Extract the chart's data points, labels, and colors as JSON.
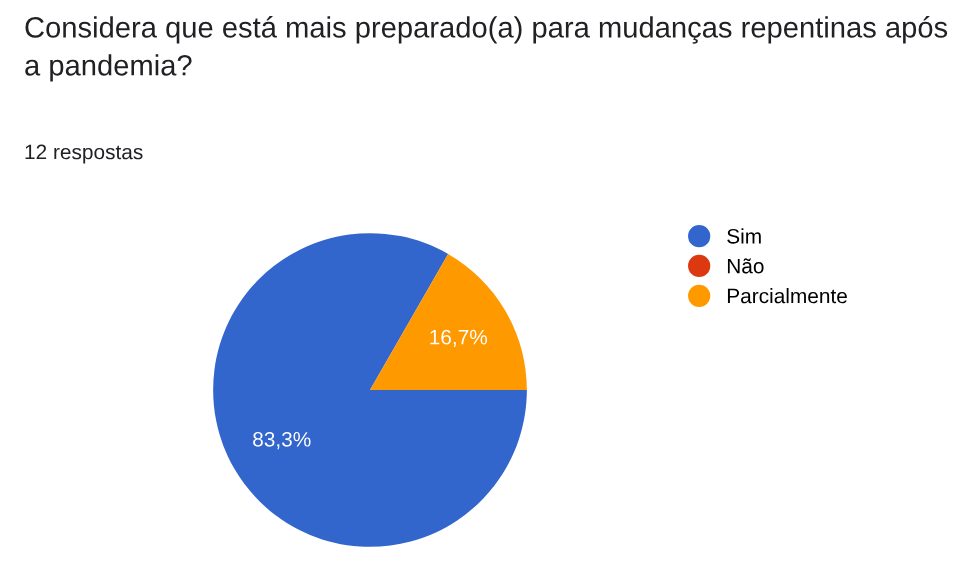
{
  "chart_data": {
    "type": "pie",
    "title": "Considera que está mais preparado(a) para mudanças repentinas após a pandemia?",
    "subtitle": "12 respostas",
    "categories": [
      "Sim",
      "Não",
      "Parcialmente"
    ],
    "values": [
      83.3,
      0,
      16.7
    ],
    "colors": [
      "#3366cc",
      "#dc3912",
      "#ff9900"
    ],
    "value_labels": [
      "83,3%",
      null,
      "16,7%"
    ],
    "legend": "right"
  }
}
